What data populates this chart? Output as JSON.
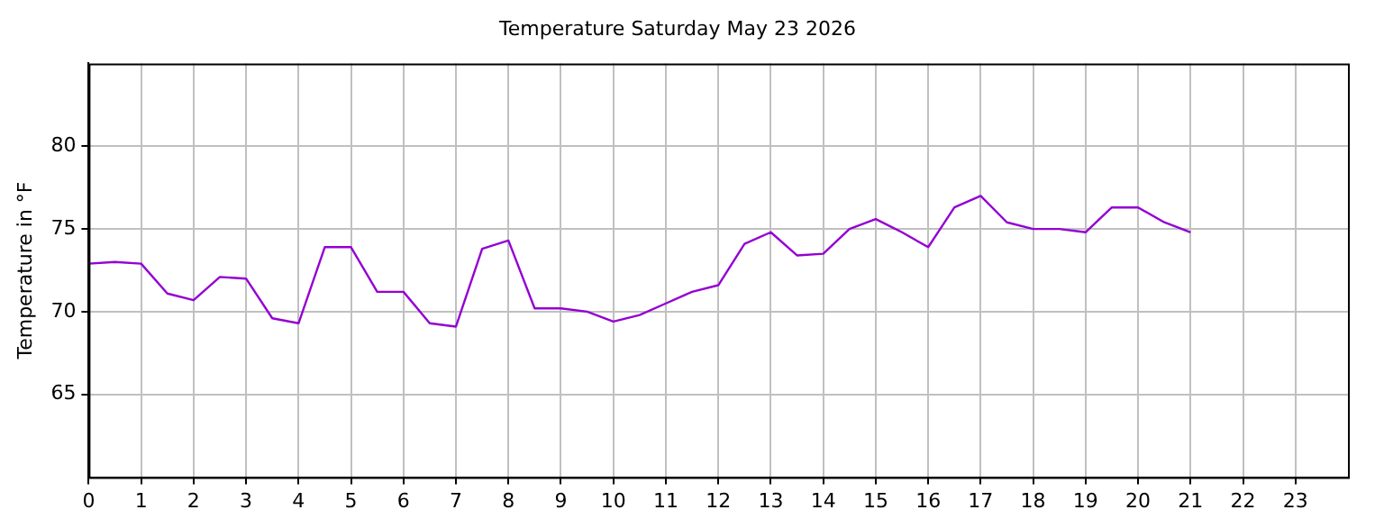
{
  "chart_data": {
    "type": "line",
    "title": "Temperature Saturday May 23 2026",
    "ylabel": "Temperature in °F",
    "x": [
      0,
      0.5,
      1,
      1.5,
      2,
      2.5,
      3,
      3.5,
      4,
      4.5,
      5,
      5.5,
      6,
      6.5,
      7,
      7.5,
      8,
      8.5,
      9,
      9.5,
      10,
      10.5,
      11,
      11.5,
      12,
      12.5,
      13,
      13.5,
      14,
      14.5,
      15,
      15.5,
      16,
      16.5,
      17,
      17.5,
      18,
      18.5,
      19,
      19.5,
      20,
      20.5,
      21
    ],
    "series": [
      {
        "color": "#9400d3",
        "values": [
          72.9,
          73.0,
          72.9,
          71.1,
          70.7,
          72.1,
          72.0,
          69.6,
          69.3,
          73.9,
          73.9,
          71.2,
          71.2,
          69.3,
          69.1,
          73.8,
          74.3,
          70.2,
          70.2,
          70.0,
          69.4,
          69.8,
          70.5,
          71.2,
          71.6,
          74.1,
          74.8,
          73.4,
          73.5,
          75.0,
          75.6,
          74.8,
          73.9,
          76.3,
          77.0,
          75.4,
          75.0,
          75.0,
          74.8,
          76.3,
          76.3,
          75.4,
          74.8
        ]
      }
    ],
    "xlim": [
      0,
      24
    ],
    "xticks": [
      0,
      1,
      2,
      3,
      4,
      5,
      6,
      7,
      8,
      9,
      10,
      11,
      12,
      13,
      14,
      15,
      16,
      17,
      18,
      19,
      20,
      21,
      22,
      23
    ],
    "ylim": [
      60,
      85
    ],
    "yticks": [
      65,
      70,
      75,
      80
    ],
    "grid": true,
    "legend": false,
    "marker": "none",
    "line_style": "solid"
  }
}
